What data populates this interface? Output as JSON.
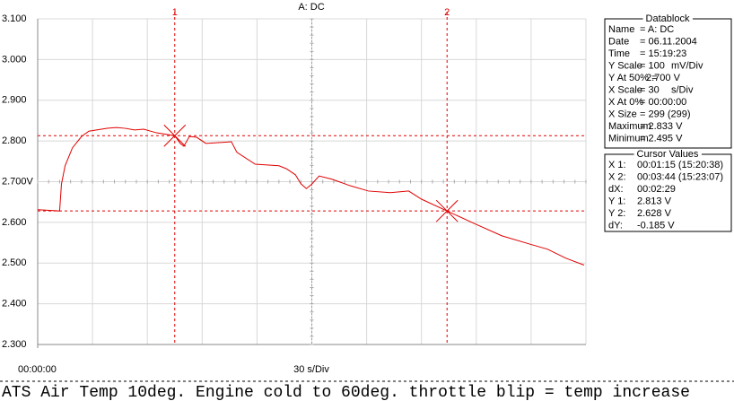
{
  "chart_data": {
    "type": "line",
    "title": "A: DC",
    "xlabel": "30 s/Div",
    "x": [
      0,
      12,
      13,
      15,
      19,
      24,
      28,
      38,
      43,
      48,
      53,
      58,
      65,
      75,
      78,
      80,
      83,
      87,
      92,
      106,
      109,
      119,
      132,
      136,
      141,
      144,
      147,
      150,
      154,
      161,
      171,
      181,
      193,
      203,
      210,
      224,
      240,
      254,
      269,
      279,
      289,
      299
    ],
    "series": [
      {
        "name": "A: DC",
        "color": "#e00000",
        "values": [
          2.631,
          2.628,
          2.694,
          2.739,
          2.783,
          2.811,
          2.824,
          2.831,
          2.833,
          2.831,
          2.827,
          2.829,
          2.82,
          2.813,
          2.794,
          2.787,
          2.811,
          2.809,
          2.794,
          2.798,
          2.772,
          2.743,
          2.739,
          2.732,
          2.717,
          2.695,
          2.683,
          2.694,
          2.714,
          2.706,
          2.69,
          2.677,
          2.673,
          2.677,
          2.657,
          2.628,
          2.595,
          2.567,
          2.547,
          2.534,
          2.512,
          2.495
        ]
      }
    ],
    "xlim": [
      0,
      300
    ],
    "xticks": [
      {
        "value": 0,
        "label": "00:00:00"
      }
    ],
    "x_grid": [
      30,
      60,
      90,
      120,
      150,
      180,
      210,
      240,
      270,
      300
    ],
    "ylim": [
      2.3,
      3.1
    ],
    "yticks": [
      {
        "value": 3.1,
        "label": "3.100"
      },
      {
        "value": 3.0,
        "label": "3.000"
      },
      {
        "value": 2.9,
        "label": "2.900"
      },
      {
        "value": 2.8,
        "label": "2.800"
      },
      {
        "value": 2.7,
        "label": "2.700V"
      },
      {
        "value": 2.6,
        "label": "2.600"
      },
      {
        "value": 2.5,
        "label": "2.500"
      },
      {
        "value": 2.4,
        "label": "2.400"
      },
      {
        "value": 2.3,
        "label": "2.300"
      }
    ],
    "grid": true,
    "cursors": [
      {
        "label": "1",
        "x": 75,
        "y": 2.813,
        "color": "#e00000"
      },
      {
        "label": "2",
        "x": 224,
        "y": 2.628,
        "color": "#e00000"
      }
    ]
  },
  "datablock": {
    "title": "Datablock",
    "rows": [
      [
        "Name",
        "= A: DC"
      ],
      [
        "Date",
        "= 06.11.2004"
      ],
      [
        "Time",
        "= 15:19:23"
      ],
      [
        "Y Scale",
        "= 100",
        "mV/Div"
      ],
      [
        "Y At 50% =",
        "2.700 V"
      ],
      [
        "X Scale",
        "= 30",
        "s/Div"
      ],
      [
        "X At 0%",
        "= 00:00:00"
      ],
      [
        "X Size",
        "= 299 (299)"
      ],
      [
        "Maximum",
        "= 2.833 V"
      ],
      [
        "Minimum",
        "= 2.495 V"
      ]
    ]
  },
  "cursor_values": {
    "title": "Cursor Values",
    "rows": [
      [
        "X 1:",
        "00:01:15 (15:20:38)"
      ],
      [
        "X 2:",
        "00:03:44 (15:23:07)"
      ],
      [
        "dX:",
        "00:02:29"
      ],
      [
        "Y 1:",
        "2.813 V"
      ],
      [
        "Y 2:",
        "2.628 V"
      ],
      [
        "dY:",
        "-0.185 V"
      ]
    ]
  },
  "caption": "ATS Air Temp 10deg. Engine cold to 60deg. throttle blip = temp increase"
}
